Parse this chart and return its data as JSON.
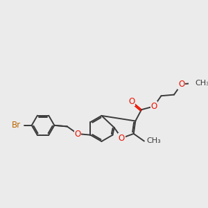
{
  "bg_color": "#ebebeb",
  "bond_color": "#3a3a3a",
  "oxygen_color": "#ee1100",
  "bromine_color": "#bb6600",
  "bond_width": 1.4,
  "font_size": 8.5,
  "figsize": [
    3.0,
    3.0
  ],
  "dpi": 100,
  "xlim": [
    0,
    10
  ],
  "ylim": [
    0,
    10
  ]
}
